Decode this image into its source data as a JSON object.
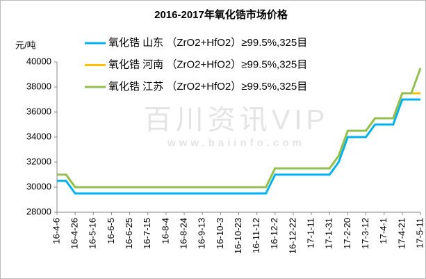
{
  "chart_data": {
    "type": "line",
    "title": "2016-2017年氧化锆市场价格",
    "y_label": "元/吨",
    "watermark": "百川资讯VIP",
    "watermark_url": "www.baiinfo.com",
    "categories": [
      "16-4-6",
      null,
      "16-4-26",
      null,
      "16-5-16",
      null,
      "16-6-5",
      null,
      "16-6-25",
      null,
      "16-7-15",
      null,
      "16-8-4",
      null,
      "16-8-24",
      null,
      "16-9-13",
      null,
      "16-10-3",
      null,
      "16-10-23",
      null,
      "16-11-12",
      null,
      "16-12-2",
      null,
      "16-12-22",
      null,
      "17-1-11",
      null,
      "17-1-31",
      null,
      "17-2-20",
      null,
      "17-3-12",
      null,
      "17-4-1",
      null,
      "17-4-21",
      null,
      "17-5-11"
    ],
    "series": [
      {
        "name": "氧化锆 山东 （ZrO2+HfO2）≥99.5%,325目",
        "color": "#00b0f0",
        "values": [
          30500,
          30500,
          29500,
          29500,
          29500,
          29500,
          29500,
          29500,
          29500,
          29500,
          29500,
          29500,
          29500,
          29500,
          29500,
          29500,
          29500,
          29500,
          29500,
          29500,
          29500,
          29500,
          29500,
          29500,
          31000,
          31000,
          31000,
          31000,
          31000,
          31000,
          31000,
          32000,
          34000,
          34000,
          34000,
          35000,
          35000,
          35000,
          37000,
          37000,
          37000
        ]
      },
      {
        "name": "氧化锆 河南 （ZrO2+HfO2）≥99.5%,325目",
        "color": "#ffc000",
        "values": [
          31000,
          31000,
          30000,
          30000,
          30000,
          30000,
          30000,
          30000,
          30000,
          30000,
          30000,
          30000,
          30000,
          30000,
          30000,
          30000,
          30000,
          30000,
          30000,
          30000,
          30000,
          30000,
          30000,
          30000,
          31500,
          31500,
          31500,
          31500,
          31500,
          31500,
          31500,
          32500,
          34500,
          34500,
          34500,
          35500,
          35500,
          35500,
          37500,
          37500,
          37500
        ]
      },
      {
        "name": "氧化锆 江苏 （ZrO2+HfO2）≥99.5%,325目",
        "color": "#92c050",
        "values": [
          31000,
          31000,
          30000,
          30000,
          30000,
          30000,
          30000,
          30000,
          30000,
          30000,
          30000,
          30000,
          30000,
          30000,
          30000,
          30000,
          30000,
          30000,
          30000,
          30000,
          30000,
          30000,
          30000,
          30000,
          31500,
          31500,
          31500,
          31500,
          31500,
          31500,
          31500,
          32500,
          34500,
          34500,
          34500,
          35500,
          35500,
          35500,
          37500,
          37500,
          39500
        ]
      }
    ],
    "ylim": [
      28000,
      40000
    ],
    "yticks": [
      28000,
      30000,
      32000,
      34000,
      36000,
      38000,
      40000
    ],
    "grid": false
  }
}
